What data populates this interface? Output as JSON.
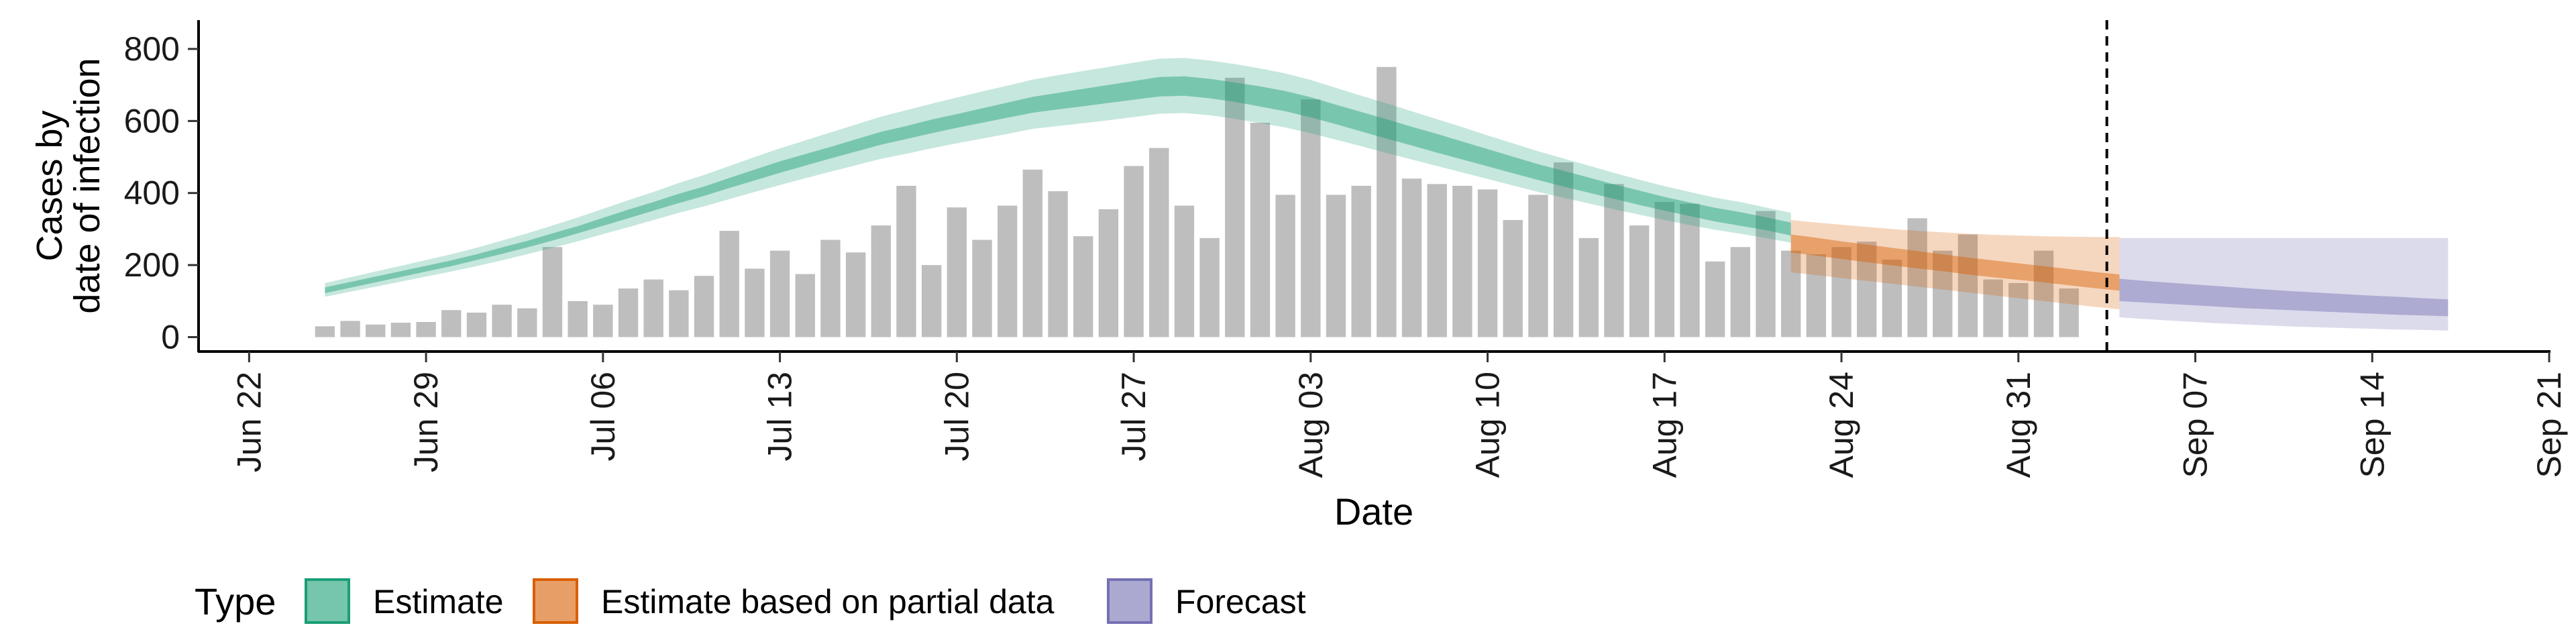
{
  "chart_data": {
    "type": "bar",
    "ylabel_lines": [
      "Cases by",
      "date of infection"
    ],
    "xlabel": "Date",
    "ylim": [
      -40,
      880
    ],
    "yticks": [
      0,
      200,
      400,
      600,
      800
    ],
    "x_start": "2020-06-20",
    "x_end": "2020-09-21",
    "xticks": [
      {
        "date": "2020-06-22",
        "label": "Jun 22"
      },
      {
        "date": "2020-06-29",
        "label": "Jun 29"
      },
      {
        "date": "2020-07-06",
        "label": "Jul 06"
      },
      {
        "date": "2020-07-13",
        "label": "Jul 13"
      },
      {
        "date": "2020-07-20",
        "label": "Jul 20"
      },
      {
        "date": "2020-07-27",
        "label": "Jul 27"
      },
      {
        "date": "2020-08-03",
        "label": "Aug 03"
      },
      {
        "date": "2020-08-10",
        "label": "Aug 10"
      },
      {
        "date": "2020-08-17",
        "label": "Aug 17"
      },
      {
        "date": "2020-08-24",
        "label": "Aug 24"
      },
      {
        "date": "2020-08-31",
        "label": "Aug 31"
      },
      {
        "date": "2020-09-07",
        "label": "Sep 07"
      },
      {
        "date": "2020-09-14",
        "label": "Sep 14"
      },
      {
        "date": "2020-09-21",
        "label": "Sep 21"
      }
    ],
    "bars_start_date": "2020-06-25",
    "bar_color": "#bebebe",
    "bars": [
      30,
      45,
      35,
      40,
      42,
      75,
      68,
      90,
      80,
      250,
      100,
      90,
      135,
      160,
      130,
      170,
      295,
      190,
      240,
      175,
      270,
      235,
      310,
      420,
      200,
      360,
      270,
      365,
      465,
      405,
      280,
      355,
      475,
      525,
      365,
      275,
      720,
      595,
      395,
      660,
      395,
      420,
      750,
      440,
      425,
      420,
      410,
      325,
      395,
      485,
      275,
      425,
      310,
      375,
      370,
      210,
      250,
      350,
      240,
      230,
      250,
      265,
      215,
      330,
      240,
      285,
      160,
      150,
      240,
      135
    ],
    "forecast_start_date": "2020-09-03",
    "series": [
      {
        "name": "Estimate",
        "color": "#1b9e77",
        "start_date": "2020-06-25",
        "median": [
          130,
          145,
          160,
          175,
          190,
          205,
          222,
          240,
          258,
          278,
          298,
          320,
          342,
          363,
          385,
          405,
          428,
          450,
          472,
          492,
          512,
          532,
          552,
          568,
          585,
          600,
          615,
          630,
          645,
          655,
          665,
          675,
          685,
          695,
          697,
          690,
          680,
          668,
          655,
          638,
          618,
          598,
          578,
          558,
          538,
          518,
          498,
          478,
          458,
          440,
          422,
          404,
          387,
          370,
          355,
          340,
          328,
          315,
          300
        ],
        "inner_lower": [
          122,
          137,
          152,
          167,
          182,
          197,
          214,
          231,
          249,
          268,
          288,
          309,
          330,
          351,
          372,
          392,
          414,
          435,
          456,
          476,
          496,
          515,
          534,
          550,
          566,
          581,
          595,
          609,
          623,
          632,
          641,
          650,
          659,
          668,
          670,
          663,
          653,
          640,
          627,
          610,
          591,
          571,
          551,
          532,
          512,
          493,
          474,
          455,
          436,
          418,
          401,
          384,
          367,
          351,
          336,
          321,
          309,
          297,
          282
        ],
        "inner_upper": [
          138,
          153,
          168,
          183,
          198,
          213,
          230,
          249,
          267,
          288,
          308,
          331,
          354,
          375,
          398,
          418,
          442,
          465,
          488,
          508,
          528,
          549,
          570,
          586,
          604,
          619,
          635,
          651,
          667,
          678,
          689,
          700,
          711,
          722,
          724,
          717,
          707,
          696,
          683,
          666,
          645,
          625,
          605,
          584,
          564,
          543,
          522,
          501,
          480,
          462,
          443,
          424,
          407,
          389,
          374,
          359,
          347,
          333,
          318
        ],
        "outer_lower": [
          112,
          126,
          140,
          154,
          168,
          182,
          197,
          213,
          230,
          248,
          266,
          286,
          305,
          325,
          345,
          363,
          383,
          403,
          422,
          441,
          459,
          477,
          495,
          509,
          524,
          538,
          551,
          564,
          578,
          586,
          594,
          602,
          611,
          620,
          622,
          616,
          606,
          594,
          582,
          566,
          548,
          530,
          511,
          493,
          475,
          457,
          439,
          421,
          403,
          387,
          371,
          355,
          340,
          325,
          311,
          298,
          287,
          275,
          262
        ],
        "outer_upper": [
          150,
          166,
          182,
          198,
          214,
          230,
          248,
          268,
          288,
          310,
          332,
          356,
          380,
          403,
          428,
          450,
          475,
          500,
          524,
          546,
          568,
          590,
          612,
          630,
          648,
          665,
          682,
          698,
          715,
          727,
          739,
          750,
          762,
          773,
          775,
          768,
          758,
          746,
          732,
          714,
          692,
          670,
          649,
          627,
          605,
          583,
          560,
          538,
          516,
          496,
          476,
          456,
          437,
          419,
          403,
          387,
          375,
          360,
          345
        ]
      },
      {
        "name": "Estimate based on partial data",
        "color": "#d95f02",
        "start_date": "2020-08-22",
        "median": [
          265,
          255,
          245,
          236,
          227,
          218,
          209,
          200,
          192,
          184,
          176,
          168,
          160,
          153
        ],
        "inner_lower": [
          235,
          226,
          217,
          208,
          199,
          191,
          183,
          174,
          166,
          159,
          152,
          144,
          136,
          129
        ],
        "inner_upper": [
          285,
          276,
          266,
          257,
          248,
          239,
          230,
          221,
          213,
          205,
          197,
          189,
          181,
          174
        ],
        "outer_lower": [
          180,
          172,
          164,
          156,
          148,
          140,
          132,
          124,
          116,
          108,
          100,
          92,
          84,
          77
        ],
        "outer_upper": [
          325,
          318,
          312,
          306,
          300,
          295,
          291,
          287,
          284,
          282,
          280,
          279,
          278,
          278
        ]
      },
      {
        "name": "Forecast",
        "color": "#7570b3",
        "start_date": "2020-09-04",
        "median": [
          130,
          125,
          121,
          117,
          113,
          109,
          105,
          102,
          99,
          96,
          93,
          90,
          87,
          84
        ],
        "inner_lower": [
          100,
          96,
          92,
          88,
          84,
          80,
          77,
          74,
          71,
          68,
          65,
          62,
          60,
          58
        ],
        "inner_upper": [
          162,
          156,
          151,
          146,
          141,
          136,
          131,
          127,
          123,
          119,
          115,
          112,
          108,
          105
        ],
        "outer_lower": [
          55,
          50,
          46,
          42,
          38,
          35,
          32,
          29,
          27,
          25,
          23,
          21,
          20,
          18
        ],
        "outer_upper": [
          275,
          275,
          275,
          275,
          275,
          275,
          275,
          275,
          275,
          275,
          275,
          275,
          275,
          275
        ]
      }
    ],
    "legend": {
      "title": "Type",
      "position": "bottom-left",
      "items": [
        "Estimate",
        "Estimate based on partial data",
        "Forecast"
      ]
    }
  }
}
